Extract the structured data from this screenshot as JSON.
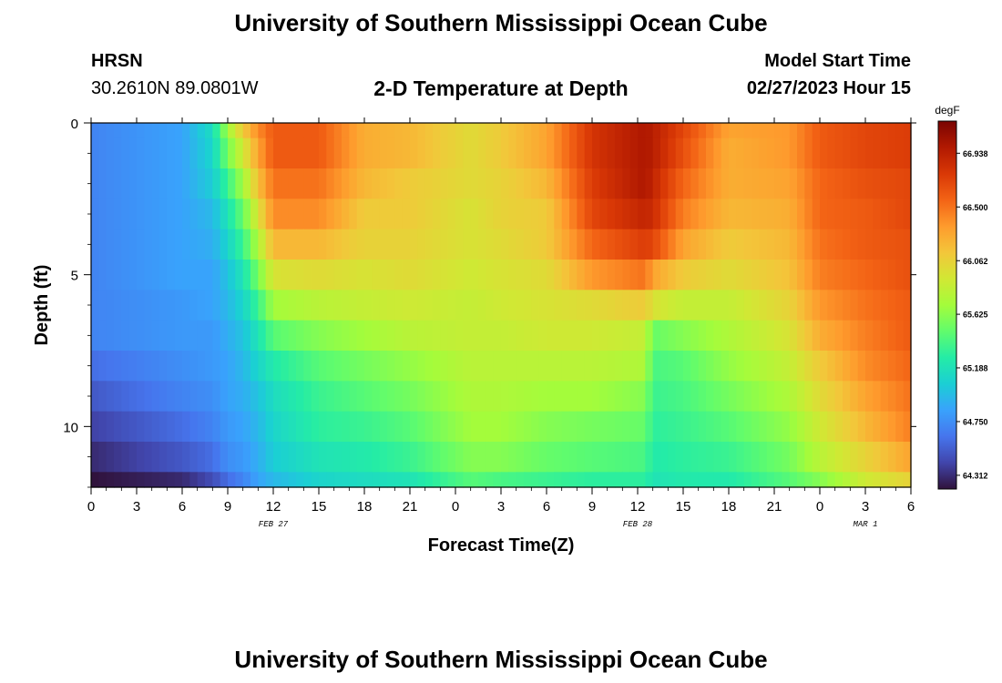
{
  "header": {
    "title": "University of Southern Mississippi Ocean Cube",
    "station": "HRSN",
    "coords": "30.2610N  89.0801W",
    "subtitle": "2-D Temperature at Depth",
    "model_start_label": "Model Start Time",
    "model_start_value": "02/27/2023 Hour 15"
  },
  "footer": {
    "title": "University of Southern Mississippi Ocean Cube"
  },
  "colors": {
    "colormap": [
      "#30123b",
      "#4145ab",
      "#4675ed",
      "#39a2fc",
      "#1bcfd4",
      "#24eca6",
      "#61fc6c",
      "#a4fc3b",
      "#d1e834",
      "#f3c63a",
      "#fe9b2d",
      "#f36315",
      "#d93806",
      "#b11901",
      "#7a0402"
    ]
  },
  "chart_data": {
    "type": "heatmap",
    "xlabel": "Forecast Time(Z)",
    "ylabel": "Depth (ft)",
    "x_ticks": [
      "0",
      "3",
      "6",
      "9",
      "12",
      "15",
      "18",
      "21",
      "0",
      "3",
      "6",
      "9",
      "12",
      "15",
      "18",
      "21",
      "0",
      "3",
      "6"
    ],
    "x_range_hours": [
      0,
      54
    ],
    "date_labels": [
      {
        "label": "FEB 27",
        "hour": 12
      },
      {
        "label": "FEB 28",
        "hour": 36
      },
      {
        "label": "MAR 1",
        "hour": 51
      }
    ],
    "y_ticks": [
      "0",
      "5",
      "10"
    ],
    "y_range_ft": [
      0,
      12
    ],
    "y_inverted": true,
    "colorbar": {
      "unit": "degF",
      "range": [
        64.2,
        67.2
      ],
      "ticks": [
        "66.938",
        "66.500",
        "66.062",
        "65.625",
        "65.188",
        "64.750",
        "64.312"
      ],
      "tick_values": [
        66.938,
        66.5,
        66.062,
        65.625,
        65.188,
        64.75,
        64.312
      ]
    },
    "depth_layers_ft": [
      0,
      0.5,
      1.5,
      2.5,
      3.5,
      4.5,
      5.5,
      6.5,
      7.5,
      8.5,
      9.5,
      10.5,
      11.5,
      12
    ],
    "time_keys": [
      {
        "t": 0,
        "v": [
          64.7,
          64.7,
          64.7,
          64.7,
          64.7,
          64.7,
          64.7,
          64.7,
          64.6,
          64.5,
          64.4,
          64.3,
          64.2
        ]
      },
      {
        "t": 6,
        "v": [
          64.85,
          64.85,
          64.85,
          64.85,
          64.85,
          64.85,
          64.8,
          64.8,
          64.75,
          64.7,
          64.6,
          64.5,
          64.3
        ]
      },
      {
        "t": 8,
        "v": [
          65.15,
          65.1,
          65.05,
          64.95,
          64.9,
          64.85,
          64.85,
          64.8,
          64.8,
          64.75,
          64.7,
          64.6,
          64.45
        ]
      },
      {
        "t": 9,
        "v": [
          65.7,
          65.55,
          65.35,
          65.2,
          65.1,
          65.0,
          64.95,
          64.9,
          64.85,
          64.85,
          64.8,
          64.75,
          64.6
        ]
      },
      {
        "t": 10,
        "v": [
          66.1,
          65.9,
          65.7,
          65.5,
          65.35,
          65.2,
          65.1,
          65.0,
          64.95,
          64.9,
          64.85,
          64.8,
          64.7
        ]
      },
      {
        "t": 11,
        "v": [
          66.4,
          66.3,
          66.15,
          65.95,
          65.75,
          65.55,
          65.35,
          65.2,
          65.1,
          65.0,
          64.95,
          64.9,
          64.85
        ]
      },
      {
        "t": 12,
        "v": [
          66.6,
          66.6,
          66.5,
          66.4,
          66.2,
          65.95,
          65.7,
          65.45,
          65.25,
          65.15,
          65.1,
          65.05,
          64.95
        ]
      },
      {
        "t": 15,
        "v": [
          66.6,
          66.6,
          66.5,
          66.4,
          66.2,
          66.0,
          65.8,
          65.6,
          65.45,
          65.35,
          65.3,
          65.2,
          65.1
        ]
      },
      {
        "t": 18,
        "v": [
          66.25,
          66.25,
          66.2,
          66.1,
          66.05,
          65.95,
          65.85,
          65.7,
          65.55,
          65.45,
          65.35,
          65.25,
          65.15
        ]
      },
      {
        "t": 21,
        "v": [
          66.2,
          66.2,
          66.1,
          66.1,
          66.05,
          66.0,
          65.9,
          65.8,
          65.65,
          65.55,
          65.45,
          65.35,
          65.2
        ]
      },
      {
        "t": 25,
        "v": [
          66.0,
          66.0,
          66.0,
          65.95,
          65.95,
          65.9,
          65.85,
          65.85,
          65.8,
          65.75,
          65.7,
          65.6,
          65.45
        ]
      },
      {
        "t": 27,
        "v": [
          66.1,
          66.1,
          66.05,
          66.05,
          66.0,
          65.95,
          65.9,
          65.85,
          65.8,
          65.75,
          65.7,
          65.6,
          65.4
        ]
      },
      {
        "t": 30,
        "v": [
          66.3,
          66.3,
          66.2,
          66.1,
          66.1,
          66.0,
          65.95,
          65.9,
          65.8,
          65.7,
          65.6,
          65.5,
          65.35
        ]
      },
      {
        "t": 33,
        "v": [
          66.8,
          66.8,
          66.75,
          66.7,
          66.55,
          66.35,
          66.0,
          65.9,
          65.8,
          65.7,
          65.55,
          65.45,
          65.3
        ]
      },
      {
        "t": 36.5,
        "v": [
          67.0,
          67.0,
          67.0,
          66.9,
          66.75,
          66.5,
          66.1,
          65.85,
          65.75,
          65.6,
          65.5,
          65.4,
          65.3
        ]
      },
      {
        "t": 37,
        "v": [
          66.95,
          66.95,
          66.9,
          66.85,
          66.7,
          66.3,
          65.95,
          65.5,
          65.4,
          65.35,
          65.3,
          65.25,
          65.2
        ]
      },
      {
        "t": 39,
        "v": [
          66.7,
          66.65,
          66.55,
          66.45,
          66.3,
          66.1,
          65.85,
          65.6,
          65.45,
          65.4,
          65.35,
          65.3,
          65.25
        ]
      },
      {
        "t": 42,
        "v": [
          66.3,
          66.25,
          66.25,
          66.2,
          66.1,
          66.0,
          65.85,
          65.75,
          65.65,
          65.55,
          65.45,
          65.35,
          65.25
        ]
      },
      {
        "t": 46,
        "v": [
          66.35,
          66.35,
          66.3,
          66.25,
          66.2,
          66.15,
          66.05,
          65.95,
          65.85,
          65.75,
          65.65,
          65.55,
          65.45
        ]
      },
      {
        "t": 48,
        "v": [
          66.6,
          66.6,
          66.55,
          66.55,
          66.5,
          66.45,
          66.35,
          66.25,
          66.1,
          66.0,
          65.9,
          65.8,
          65.6
        ]
      },
      {
        "t": 51,
        "v": [
          66.7,
          66.7,
          66.65,
          66.6,
          66.6,
          66.55,
          66.5,
          66.45,
          66.4,
          66.3,
          66.2,
          66.05,
          65.9
        ]
      },
      {
        "t": 54,
        "v": [
          66.75,
          66.75,
          66.7,
          66.7,
          66.65,
          66.65,
          66.6,
          66.6,
          66.55,
          66.5,
          66.45,
          66.3,
          66.05
        ]
      }
    ]
  }
}
